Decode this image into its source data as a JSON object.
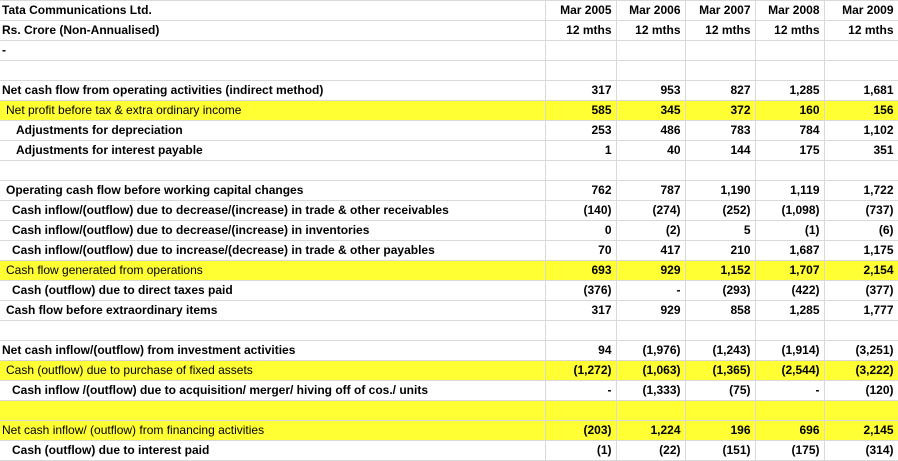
{
  "header": {
    "company": "Tata Communications Ltd.",
    "unit": "Rs. Crore  (Non-Annualised)",
    "dash": "-",
    "periods": [
      "Mar 2005",
      "Mar 2006",
      "Mar 2007",
      "Mar 2008",
      "Mar 2009"
    ],
    "durations": [
      "12 mths",
      "12 mths",
      "12 mths",
      "12 mths",
      "12 mths"
    ]
  },
  "rows": [
    {
      "label": "",
      "values": [
        "",
        "",
        "",
        "",
        ""
      ]
    },
    {
      "label": "Net cash flow from operating activities (indirect method)",
      "values": [
        "317",
        "953",
        "827",
        "1,285",
        "1,681"
      ]
    },
    {
      "label": "Net profit before tax & extra ordinary income",
      "values": [
        "585",
        "345",
        "372",
        "160",
        "156"
      ]
    },
    {
      "label": "Adjustments for depreciation",
      "values": [
        "253",
        "486",
        "783",
        "784",
        "1,102"
      ]
    },
    {
      "label": "Adjustments for interest payable",
      "values": [
        "1",
        "40",
        "144",
        "175",
        "351"
      ]
    },
    {
      "label": "",
      "values": [
        "",
        "",
        "",
        "",
        ""
      ]
    },
    {
      "label": "Operating cash flow before working capital changes",
      "values": [
        "762",
        "787",
        "1,190",
        "1,119",
        "1,722"
      ]
    },
    {
      "label": "Cash inflow/(outflow) due to decrease/(increase) in trade & other receivables",
      "values": [
        "(140)",
        "(274)",
        "(252)",
        "(1,098)",
        "(737)"
      ]
    },
    {
      "label": "Cash inflow/(outflow) due to decrease/(increase) in inventories",
      "values": [
        "0",
        "(2)",
        "5",
        "(1)",
        "(6)"
      ]
    },
    {
      "label": "Cash inflow/(outflow) due to increase/(decrease) in trade & other payables",
      "values": [
        "70",
        "417",
        "210",
        "1,687",
        "1,175"
      ]
    },
    {
      "label": "Cash flow generated from operations",
      "values": [
        "693",
        "929",
        "1,152",
        "1,707",
        "2,154"
      ]
    },
    {
      "label": "Cash (outflow) due to direct taxes paid",
      "values": [
        "(376)",
        "-",
        "(293)",
        "(422)",
        "(377)"
      ]
    },
    {
      "label": "Cash flow before extraordinary items",
      "values": [
        "317",
        "929",
        "858",
        "1,285",
        "1,777"
      ]
    },
    {
      "label": "",
      "values": [
        "",
        "",
        "",
        "",
        ""
      ]
    },
    {
      "label": "Net cash inflow/(outflow) from investment activities",
      "values": [
        "94",
        "(1,976)",
        "(1,243)",
        "(1,914)",
        "(3,251)"
      ]
    },
    {
      "label": "Cash (outflow) due to purchase of fixed assets",
      "values": [
        "(1,272)",
        "(1,063)",
        "(1,365)",
        "(2,544)",
        "(3,222)"
      ]
    },
    {
      "label": "Cash inflow /(outflow) due to acquisition/ merger/ hiving off of cos./ units",
      "values": [
        "-",
        "(1,333)",
        "(75)",
        "-",
        "(120)"
      ]
    },
    {
      "label": "",
      "values": [
        "",
        "",
        "",
        "",
        ""
      ]
    },
    {
      "label": "Net cash inflow/ (outflow) from financing activities",
      "values": [
        "(203)",
        "1,224",
        "196",
        "696",
        "2,145"
      ]
    },
    {
      "label": "Cash (outflow) due to interest paid",
      "values": [
        "(1)",
        "(22)",
        "(151)",
        "(175)",
        "(314)"
      ]
    }
  ],
  "colors": {
    "highlight": "#ffff33",
    "grid": "#d9d9d9"
  }
}
